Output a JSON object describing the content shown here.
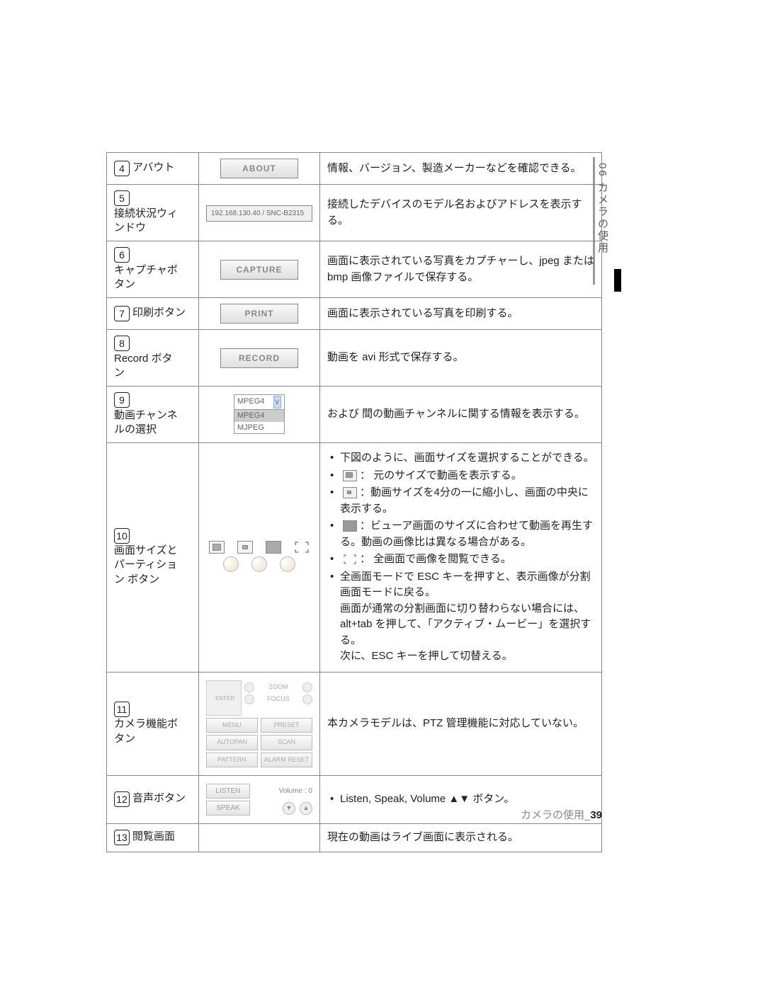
{
  "sideTab": {
    "chapter": "06",
    "title": "カメラの使用"
  },
  "rows": [
    {
      "num": "4",
      "label": "アバウト",
      "iconType": "button",
      "iconText": "ABOUT",
      "desc": "情報、バージョン、製造メーカーなどを確認できる。"
    },
    {
      "num": "5",
      "label": "接続状況ウィンドウ",
      "iconType": "address",
      "iconText": "192.168.130.40 / SNC-B2315",
      "desc": "接続したデバイスのモデル名およびアドレスを表示する。"
    },
    {
      "num": "6",
      "label": "キャプチャボタン",
      "iconType": "button",
      "iconText": "CAPTURE",
      "desc": "画面に表示されている写真をカプチャーし、jpeg または bmp 画像ファイルで保存する。"
    },
    {
      "num": "7",
      "label": "印刷ボタン",
      "iconType": "button",
      "iconText": "PRINT",
      "desc": "画面に表示されている写真を印刷する。"
    },
    {
      "num": "8",
      "label": "Record ボタン",
      "iconType": "button",
      "iconText": "RECORD",
      "desc": "動画を avi 形式で保存する。"
    },
    {
      "num": "9",
      "label": "動画チャンネルの選択",
      "iconType": "dropdown",
      "dropdown": {
        "selected": "MPEG4",
        "options": [
          "MPEG4",
          "MJPEG"
        ]
      },
      "desc": "<MJPEG> および <MPEG4> 間の動画チャンネルに関する情報を表示する。"
    },
    {
      "num": "10",
      "label": "画面サイズとパーティション ボタン",
      "iconType": "size",
      "descList": {
        "intro": "下図のように、画面サイズを選択することができる。",
        "i1": "：  元のサイズで動画を表示する。",
        "i2": "：動画サイズを4分の一に縮小し、画面の中央に表示する。",
        "i3": "：ビューア画面のサイズに合わせて動画を再生する。動画の画像比は異なる場合がある。",
        "i4": "：  全画面で画像を閲覧できる。",
        "note1": "全画面モードで ESC キーを押すと、表示画像が分割画面モードに戻る。",
        "note2": "画面が通常の分割画面に切り替わらない場合には、alt+tab を押して、「アクティブ・ムービー」を選択する。",
        "note3": "次に、ESC キーを押して切替える。"
      }
    },
    {
      "num": "11",
      "label": "カメラ機能ボタン",
      "iconType": "ptz",
      "ptz": {
        "zoom": "ZOOM",
        "focus": "FOCUS",
        "enter": "ENTER",
        "menu": "MENU",
        "preset": "PRESET",
        "autopan": "AUTOPAN",
        "scan": "SCAN",
        "pattern": "PATTERN",
        "alarmReset": "ALARM RESET"
      },
      "desc": "本カメラモデルは、PTZ 管理機能に対応していない。"
    },
    {
      "num": "12",
      "label": "音声ボタン",
      "iconType": "audio",
      "audio": {
        "listen": "LISTEN",
        "speak": "SPEAK",
        "volume": "Volume : 0"
      },
      "descList": {
        "single": "Listen, Speak, Volume ▲▼ ボタン。"
      }
    },
    {
      "num": "13",
      "label": "閲覧画面",
      "iconType": "none",
      "desc": "現在の動画はライブ画面に表示される。"
    }
  ],
  "footer": {
    "text": "カメラの使用_",
    "page": "39"
  }
}
